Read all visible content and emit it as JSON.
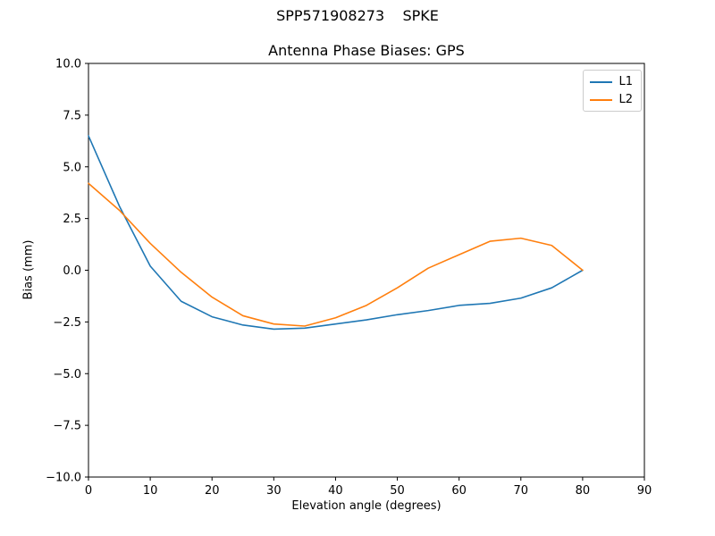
{
  "chart_data": {
    "type": "line",
    "suptitle": "SPP571908273    SPKE",
    "title": "Antenna Phase Biases: GPS",
    "xlabel": "Elevation angle (degrees)",
    "ylabel": "Bias (mm)",
    "xlim": [
      0,
      90
    ],
    "ylim": [
      -10,
      10
    ],
    "xticks": [
      0,
      10,
      20,
      30,
      40,
      50,
      60,
      70,
      80,
      90
    ],
    "xtick_labels": [
      "0",
      "10",
      "20",
      "30",
      "40",
      "50",
      "60",
      "70",
      "80",
      "90"
    ],
    "yticks": [
      -10,
      -7.5,
      -5,
      -2.5,
      0,
      2.5,
      5,
      7.5,
      10
    ],
    "ytick_labels": [
      "−10.0",
      "−7.5",
      "−5.0",
      "−2.5",
      "0.0",
      "2.5",
      "5.0",
      "7.5",
      "10.0"
    ],
    "grid": false,
    "legend_position": "upper right",
    "x": [
      0,
      5,
      10,
      15,
      20,
      25,
      30,
      35,
      40,
      45,
      50,
      55,
      60,
      65,
      70,
      75,
      80
    ],
    "series": [
      {
        "name": "L1",
        "color": "#1f77b4",
        "values": [
          6.5,
          3.1,
          0.2,
          -1.5,
          -2.25,
          -2.65,
          -2.85,
          -2.8,
          -2.6,
          -2.4,
          -2.15,
          -1.95,
          -1.7,
          -1.6,
          -1.35,
          -0.85,
          0.0
        ]
      },
      {
        "name": "L2",
        "color": "#ff7f0e",
        "values": [
          4.2,
          2.9,
          1.3,
          -0.1,
          -1.3,
          -2.2,
          -2.6,
          -2.7,
          -2.3,
          -1.7,
          -0.85,
          0.1,
          0.75,
          1.4,
          1.55,
          1.2,
          0.0
        ]
      }
    ]
  },
  "layout_colors": {
    "axes_edge": "#000000",
    "background": "#ffffff"
  }
}
